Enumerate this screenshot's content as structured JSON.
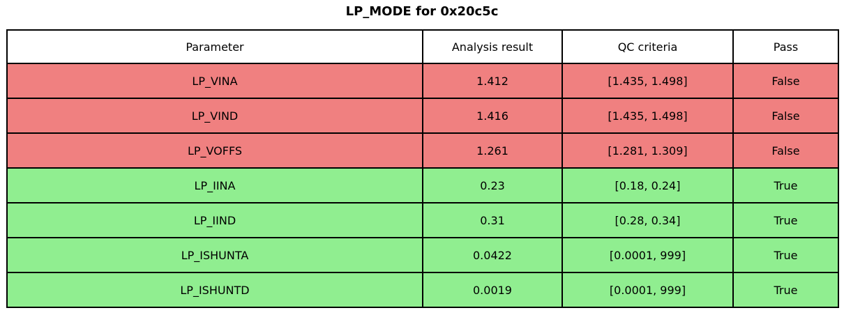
{
  "title": "LP_MODE for 0x20c5c",
  "table": {
    "headers": [
      "Parameter",
      "Analysis result",
      "QC criteria",
      "Pass"
    ],
    "rows": [
      {
        "parameter": "LP_VINA",
        "result": "1.412",
        "criteria": "[1.435, 1.498]",
        "pass": "False",
        "status": "fail"
      },
      {
        "parameter": "LP_VIND",
        "result": "1.416",
        "criteria": "[1.435, 1.498]",
        "pass": "False",
        "status": "fail"
      },
      {
        "parameter": "LP_VOFFS",
        "result": "1.261",
        "criteria": "[1.281, 1.309]",
        "pass": "False",
        "status": "fail"
      },
      {
        "parameter": "LP_IINA",
        "result": "0.23",
        "criteria": "[0.18, 0.24]",
        "pass": "True",
        "status": "pass"
      },
      {
        "parameter": "LP_IIND",
        "result": "0.31",
        "criteria": "[0.28, 0.34]",
        "pass": "True",
        "status": "pass"
      },
      {
        "parameter": "LP_ISHUNTA",
        "result": "0.0422",
        "criteria": "[0.0001, 999]",
        "pass": "True",
        "status": "pass"
      },
      {
        "parameter": "LP_ISHUNTD",
        "result": "0.0019",
        "criteria": "[0.0001, 999]",
        "pass": "True",
        "status": "pass"
      }
    ],
    "colors": {
      "fail_row": "#f08080",
      "pass_row": "#90ee90",
      "header_bg": "#ffffff",
      "border": "#000000",
      "text": "#000000"
    }
  },
  "chart_data": {
    "type": "table",
    "title": "LP_MODE for 0x20c5c",
    "columns": [
      "Parameter",
      "Analysis result",
      "QC criteria",
      "Pass"
    ],
    "rows": [
      [
        "LP_VINA",
        1.412,
        "[1.435, 1.498]",
        "False"
      ],
      [
        "LP_VIND",
        1.416,
        "[1.435, 1.498]",
        "False"
      ],
      [
        "LP_VOFFS",
        1.261,
        "[1.281, 1.309]",
        "False"
      ],
      [
        "LP_IINA",
        0.23,
        "[0.18, 0.24]",
        "True"
      ],
      [
        "LP_IIND",
        0.31,
        "[0.28, 0.34]",
        "True"
      ],
      [
        "LP_ISHUNTA",
        0.0422,
        "[0.0001, 999]",
        "True"
      ],
      [
        "LP_ISHUNTD",
        0.0019,
        "[0.0001, 999]",
        "True"
      ]
    ],
    "layout": {
      "header_background": "#ffffff",
      "fail_background": "#f08080",
      "pass_background": "#90ee90"
    }
  }
}
